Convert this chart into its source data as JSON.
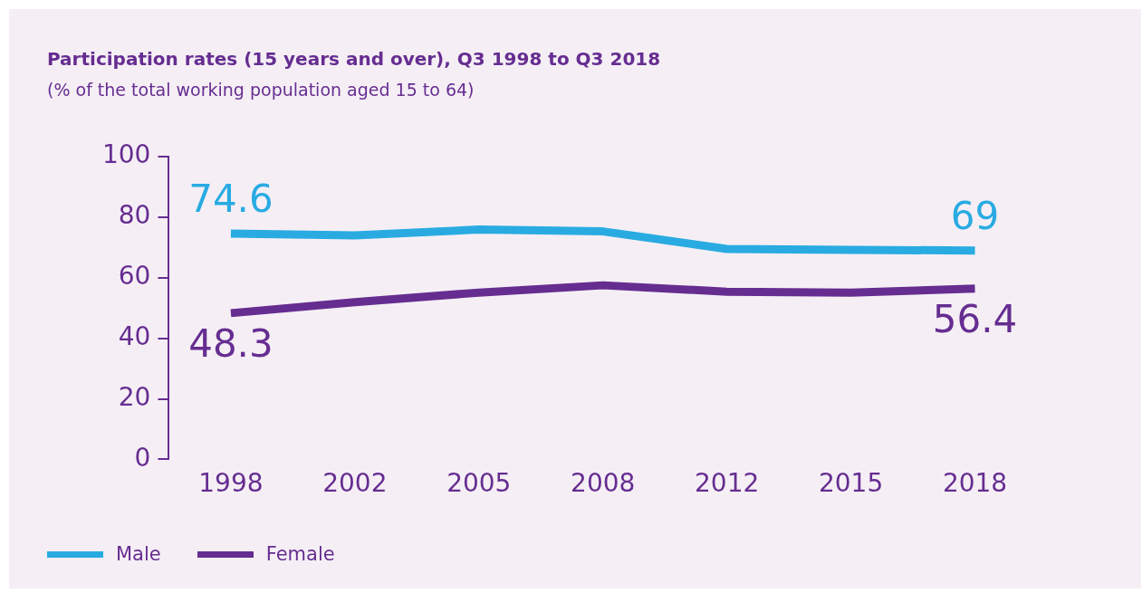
{
  "chart_data": {
    "type": "line",
    "title": "Participation rates (15 years and over), Q3 1998 to Q3 2018",
    "subtitle": "(% of the total working population aged 15 to 64)",
    "categories": [
      "1998",
      "2002",
      "2005",
      "2008",
      "2012",
      "2015",
      "2018"
    ],
    "series": [
      {
        "name": "Male",
        "color": "#29abe2",
        "values": [
          74.6,
          74.0,
          75.9,
          75.3,
          69.5,
          69.2,
          69
        ],
        "value_labels": [
          "74.6",
          null,
          null,
          null,
          null,
          null,
          "69"
        ]
      },
      {
        "name": "Female",
        "color": "#662d91",
        "values": [
          48.3,
          51.9,
          55.1,
          57.5,
          55.4,
          55.1,
          56.4
        ],
        "value_labels": [
          "48.3",
          null,
          null,
          null,
          null,
          null,
          "56.4"
        ]
      }
    ],
    "ylim": [
      0,
      100
    ],
    "yticks": [
      0,
      20,
      40,
      60,
      80,
      100
    ],
    "grid": false,
    "legend": "bottom left",
    "marker": "none",
    "line_style": "solid"
  }
}
